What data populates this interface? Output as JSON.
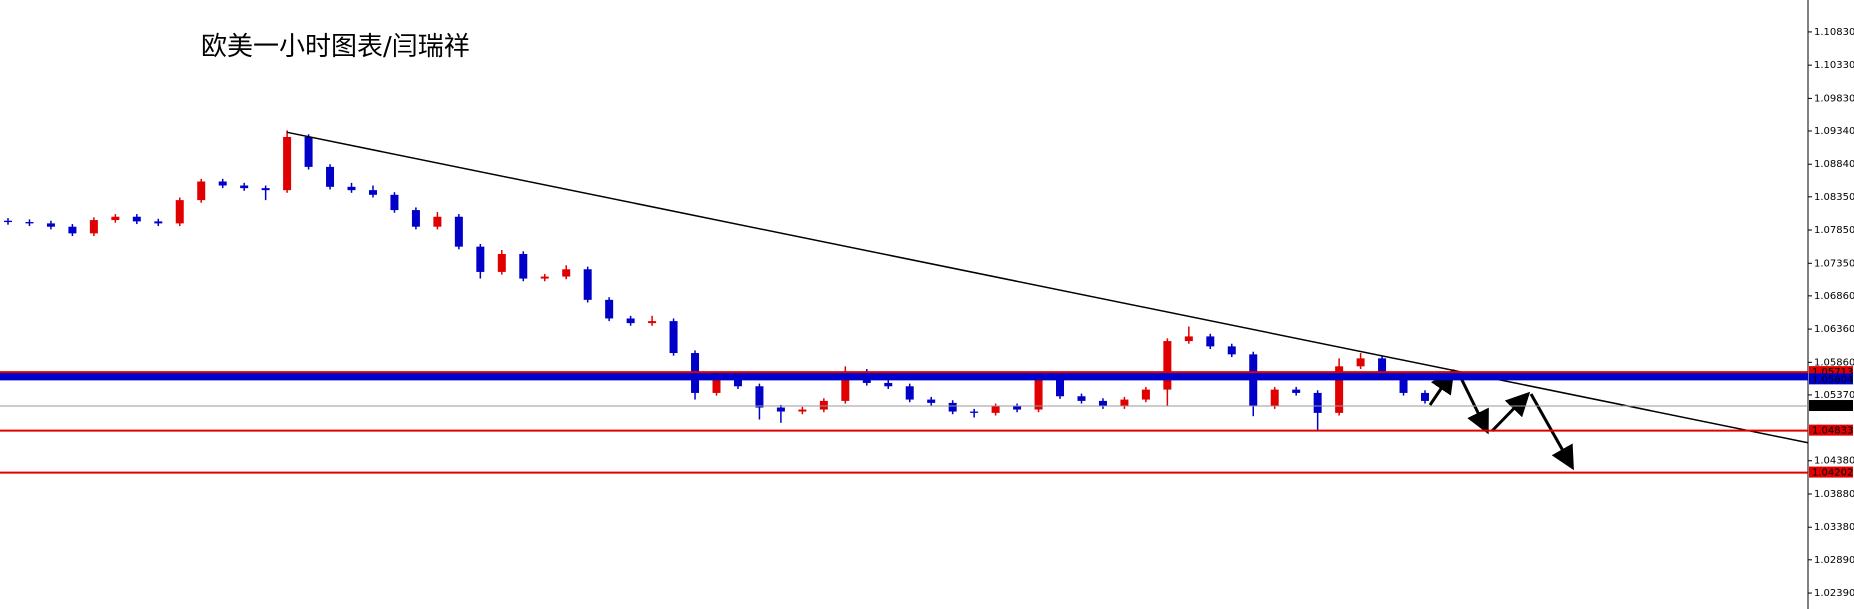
{
  "chart_data": {
    "type": "candlestick",
    "title": "欧美一小时图表/闫瑞祥",
    "open": [
      1.0799,
      1.0797,
      1.0795,
      1.079,
      1.078,
      1.08,
      1.0805,
      1.0798,
      1.0795,
      1.083,
      1.0858,
      1.0852,
      1.0848,
      1.0845,
      1.0925,
      1.088,
      1.085,
      1.0845,
      1.0838,
      1.0815,
      1.079,
      1.0805,
      1.076,
      1.0722,
      1.0749,
      1.0712,
      1.0715,
      1.0726,
      1.068,
      1.0652,
      1.0645,
      1.0648,
      1.06,
      1.054,
      1.056,
      1.055,
      1.0518,
      1.0512,
      1.0515,
      1.0528,
      1.0568,
      1.0555,
      1.055,
      1.053,
      1.0525,
      1.0512,
      1.051,
      1.052,
      1.0515,
      1.0566,
      1.0535,
      1.0528,
      1.052,
      1.053,
      1.0545,
      1.0618,
      1.0625,
      1.061,
      1.0598,
      1.052,
      1.0545,
      1.054,
      1.051,
      1.058,
      1.0592,
      1.0565,
      1.054
    ],
    "high": [
      1.0803,
      1.0801,
      1.0799,
      1.0794,
      1.0804,
      1.0809,
      1.0809,
      1.0802,
      1.0834,
      1.0862,
      1.0862,
      1.0856,
      1.0852,
      1.0935,
      1.0929,
      1.0884,
      1.0856,
      1.0852,
      1.0842,
      1.0819,
      1.0812,
      1.0809,
      1.0764,
      1.0755,
      1.0753,
      1.0719,
      1.0732,
      1.073,
      1.0684,
      1.0656,
      1.0656,
      1.0652,
      1.0604,
      1.0566,
      1.0564,
      1.0554,
      1.0522,
      1.0519,
      1.0532,
      1.058,
      1.0576,
      1.0559,
      1.0554,
      1.0534,
      1.0529,
      1.0516,
      1.0524,
      1.0524,
      1.0572,
      1.057,
      1.0539,
      1.0532,
      1.0534,
      1.0549,
      1.0622,
      1.064,
      1.0629,
      1.0614,
      1.0602,
      1.0549,
      1.0549,
      1.0544,
      1.0592,
      1.06,
      1.0596,
      1.0569,
      1.0544
    ],
    "low": [
      1.0793,
      1.0791,
      1.0786,
      1.0776,
      1.0776,
      1.0796,
      1.0794,
      1.0791,
      1.0791,
      1.0826,
      1.0848,
      1.0844,
      1.083,
      1.0841,
      1.0876,
      1.0846,
      1.0841,
      1.0834,
      1.0811,
      1.0786,
      1.0786,
      1.0756,
      1.0712,
      1.0718,
      1.0708,
      1.0708,
      1.0711,
      1.0676,
      1.0648,
      1.0641,
      1.0641,
      1.0596,
      1.053,
      1.0536,
      1.0546,
      1.05,
      1.0495,
      1.0508,
      1.0511,
      1.0524,
      1.0551,
      1.0546,
      1.0526,
      1.0521,
      1.0508,
      1.0503,
      1.0506,
      1.0511,
      1.0511,
      1.0531,
      1.0524,
      1.0516,
      1.0516,
      1.0526,
      1.052,
      1.0614,
      1.0606,
      1.0594,
      1.0505,
      1.0516,
      1.0536,
      1.0483,
      1.0506,
      1.0576,
      1.0561,
      1.0536,
      1.0524
    ],
    "close": [
      1.0797,
      1.0795,
      1.079,
      1.078,
      1.08,
      1.0805,
      1.0798,
      1.0795,
      1.083,
      1.0858,
      1.0852,
      1.0848,
      1.0845,
      1.0925,
      1.088,
      1.085,
      1.0845,
      1.0838,
      1.0815,
      1.079,
      1.0805,
      1.076,
      1.0722,
      1.0749,
      1.0712,
      1.0715,
      1.0726,
      1.068,
      1.0652,
      1.0645,
      1.0648,
      1.06,
      1.054,
      1.056,
      1.055,
      1.0518,
      1.0512,
      1.0515,
      1.0528,
      1.0568,
      1.0555,
      1.055,
      1.053,
      1.0525,
      1.0512,
      1.051,
      1.052,
      1.0515,
      1.0566,
      1.0535,
      1.0528,
      1.052,
      1.053,
      1.0545,
      1.0618,
      1.0625,
      1.061,
      1.0598,
      1.052,
      1.0545,
      1.054,
      1.051,
      1.058,
      1.0592,
      1.0565,
      1.054,
      1.0528
    ],
    "up_color": "#e00000",
    "down_color": "#0000c8",
    "ylim": [
      1.0215,
      1.1131
    ],
    "yticks": [
      {
        "value": 1.1083,
        "label": "1.10830"
      },
      {
        "value": 1.1033,
        "label": "1.10330"
      },
      {
        "value": 1.0983,
        "label": "1.09830"
      },
      {
        "value": 1.0934,
        "label": "1.09340"
      },
      {
        "value": 1.0884,
        "label": "1.08840"
      },
      {
        "value": 1.0835,
        "label": "1.08350"
      },
      {
        "value": 1.0785,
        "label": "1.07850"
      },
      {
        "value": 1.0735,
        "label": "1.07350"
      },
      {
        "value": 1.0686,
        "label": "1.06860"
      },
      {
        "value": 1.0636,
        "label": "1.06360"
      },
      {
        "value": 1.0586,
        "label": "1.05860"
      },
      {
        "value": 1.0537,
        "label": "1.05370"
      },
      {
        "value": 1.0438,
        "label": "1.04380"
      },
      {
        "value": 1.0388,
        "label": "1.03880"
      },
      {
        "value": 1.0338,
        "label": "1.03380"
      },
      {
        "value": 1.0289,
        "label": "1.02890"
      },
      {
        "value": 1.0239,
        "label": "1.02390"
      }
    ],
    "levels": [
      {
        "value": 1.05713,
        "color": "#e00000"
      },
      {
        "value": 1.05604,
        "color": "#0000cc"
      },
      {
        "value": 1.05203,
        "color": "#999999"
      },
      {
        "value": 1.04833,
        "color": "#e00000"
      },
      {
        "value": 1.04202,
        "color": "#e00000"
      }
    ],
    "trendline": {
      "start": 1.0932,
      "end": 1.0465
    }
  }
}
